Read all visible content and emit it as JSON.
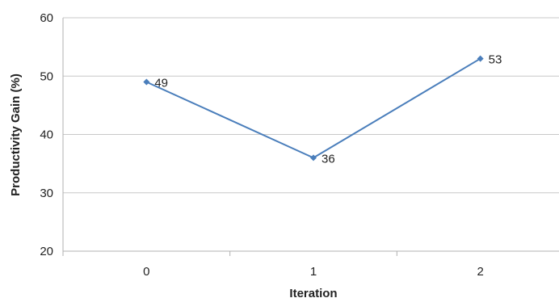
{
  "chart_data": {
    "type": "line",
    "title": "",
    "xlabel": "Iteration",
    "ylabel": "Productivity Gain (%)",
    "categories": [
      "0",
      "1",
      "2"
    ],
    "series": [
      {
        "values": [
          49,
          36,
          53
        ],
        "color": "#4a7ebb"
      }
    ],
    "ylim": [
      20,
      60
    ],
    "yticks": [
      20,
      30,
      40,
      50,
      60
    ],
    "grid": true,
    "data_labels": [
      "49",
      "36",
      "53"
    ]
  }
}
